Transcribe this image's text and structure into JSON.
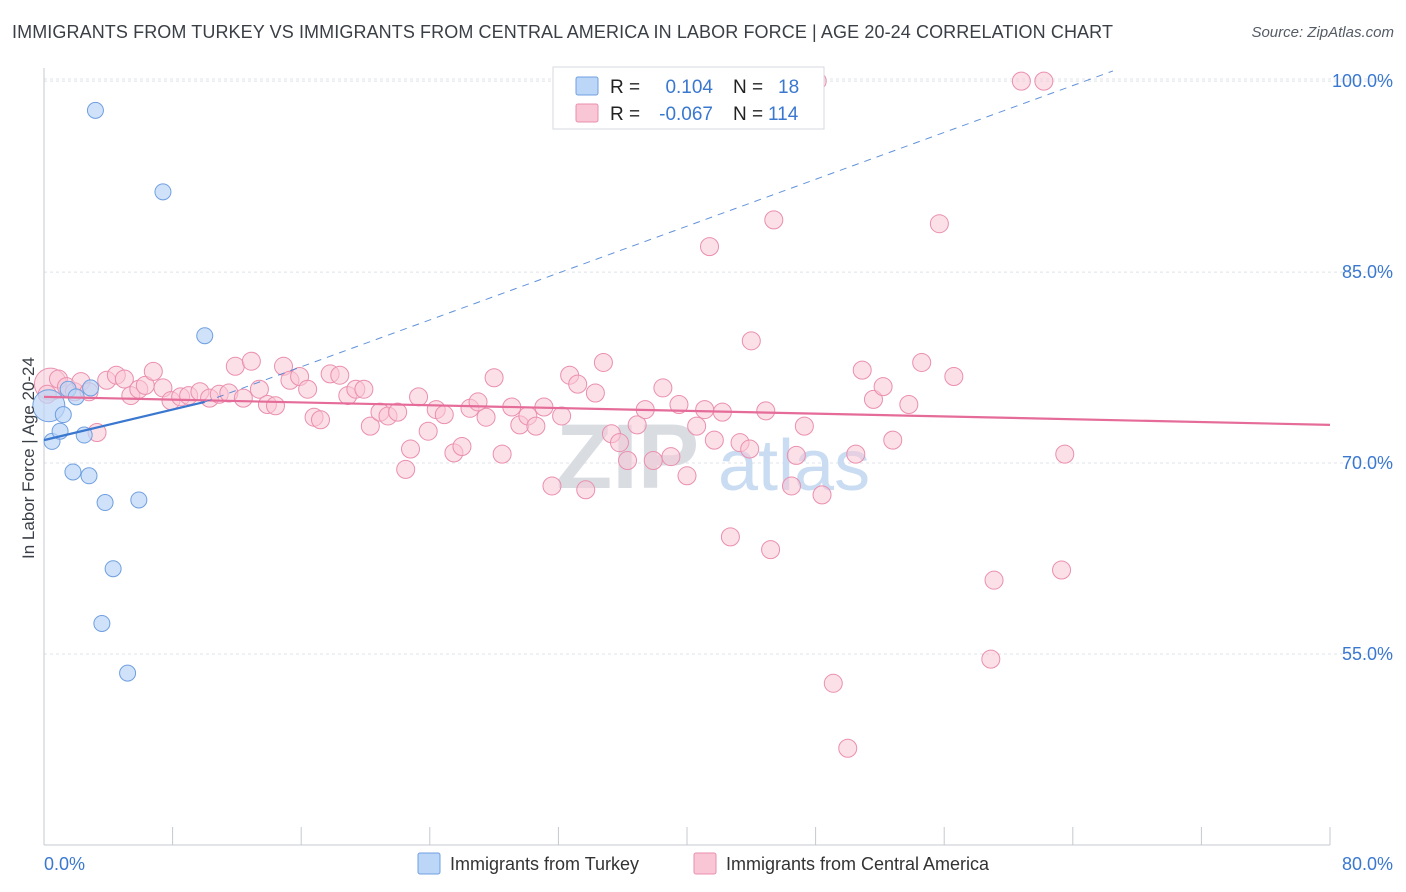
{
  "title": "IMMIGRANTS FROM TURKEY VS IMMIGRANTS FROM CENTRAL AMERICA IN LABOR FORCE | AGE 20-24 CORRELATION CHART",
  "source": "Source: ZipAtlas.com",
  "watermark": {
    "zip": "ZIP",
    "atlas": "atlas"
  },
  "colors": {
    "turkey_fill": "#bcd6f7",
    "turkey_stroke": "#6f9fe0",
    "turkey_line": "#3a78d0",
    "ca_fill": "#f9c6d6",
    "ca_stroke": "#ea8fae",
    "ca_line": "#e56b98",
    "axis_label": "#3a78d0",
    "grid": "#dfe3e8"
  },
  "legend_top": {
    "rows": [
      {
        "r_label": "R =",
        "r_value": "0.104",
        "n_label": "N =",
        "n_value": "18"
      },
      {
        "r_label": "R =",
        "r_value": "-0.067",
        "n_label": "N =",
        "n_value": "114"
      }
    ]
  },
  "legend_bottom": {
    "items": [
      {
        "label": "Immigrants from Turkey"
      },
      {
        "label": "Immigrants from Central America"
      }
    ]
  },
  "chart_data": {
    "type": "scatter",
    "title": "IMMIGRANTS FROM TURKEY VS IMMIGRANTS FROM CENTRAL AMERICA IN LABOR FORCE | AGE 20-24 CORRELATION CHART",
    "xlabel": "",
    "ylabel": "In Labor Force | Age 20-24",
    "xlim": [
      0,
      80
    ],
    "ylim": [
      40,
      101.5
    ],
    "x_tick_labels": [
      "0.0%",
      "80.0%"
    ],
    "y_ticks": [
      55,
      70,
      85,
      100
    ],
    "y_tick_labels": [
      "55.0%",
      "70.0%",
      "85.0%",
      "100.0%"
    ],
    "grid": true,
    "legend_position": "top-center",
    "series": [
      {
        "name": "Immigrants from Turkey",
        "r": 0.104,
        "n": 18,
        "trend": {
          "x": [
            0,
            10
          ],
          "y": [
            71.8,
            74.8
          ]
        },
        "trend_extension": {
          "x": [
            10,
            66.5
          ],
          "y": [
            74.8,
            100.8
          ]
        },
        "points": [
          {
            "x": 0.3,
            "y": 74.5,
            "big": true
          },
          {
            "x": 0.5,
            "y": 71.7
          },
          {
            "x": 1.0,
            "y": 72.5
          },
          {
            "x": 1.2,
            "y": 73.8
          },
          {
            "x": 1.5,
            "y": 75.8
          },
          {
            "x": 1.8,
            "y": 69.3
          },
          {
            "x": 2.0,
            "y": 75.2
          },
          {
            "x": 2.5,
            "y": 72.2
          },
          {
            "x": 2.8,
            "y": 69.0
          },
          {
            "x": 3.2,
            "y": 97.7
          },
          {
            "x": 3.8,
            "y": 66.9
          },
          {
            "x": 4.3,
            "y": 61.7
          },
          {
            "x": 3.6,
            "y": 57.4
          },
          {
            "x": 5.2,
            "y": 53.5
          },
          {
            "x": 5.9,
            "y": 67.1
          },
          {
            "x": 7.4,
            "y": 91.3
          },
          {
            "x": 10.0,
            "y": 80.0
          },
          {
            "x": 2.9,
            "y": 75.9
          }
        ]
      },
      {
        "name": "Immigrants from Central America",
        "r": -0.067,
        "n": 114,
        "trend": {
          "x": [
            0,
            80
          ],
          "y": [
            75.2,
            73.0
          ]
        },
        "points": [
          {
            "x": 0.4,
            "y": 76.2,
            "big": true
          },
          {
            "x": 0.9,
            "y": 76.6
          },
          {
            "x": 1.4,
            "y": 76.0
          },
          {
            "x": 1.9,
            "y": 75.6
          },
          {
            "x": 2.3,
            "y": 76.4
          },
          {
            "x": 2.8,
            "y": 75.6
          },
          {
            "x": 3.3,
            "y": 72.4
          },
          {
            "x": 3.9,
            "y": 76.5
          },
          {
            "x": 4.5,
            "y": 76.9
          },
          {
            "x": 5.0,
            "y": 76.6
          },
          {
            "x": 5.4,
            "y": 75.3
          },
          {
            "x": 5.9,
            "y": 75.8
          },
          {
            "x": 6.3,
            "y": 76.1
          },
          {
            "x": 6.8,
            "y": 77.2
          },
          {
            "x": 7.4,
            "y": 75.9
          },
          {
            "x": 7.9,
            "y": 74.9
          },
          {
            "x": 8.5,
            "y": 75.2
          },
          {
            "x": 9.0,
            "y": 75.3
          },
          {
            "x": 9.7,
            "y": 75.6
          },
          {
            "x": 10.3,
            "y": 75.1
          },
          {
            "x": 10.9,
            "y": 75.4
          },
          {
            "x": 11.5,
            "y": 75.5
          },
          {
            "x": 11.9,
            "y": 77.6
          },
          {
            "x": 12.4,
            "y": 75.1
          },
          {
            "x": 12.9,
            "y": 78.0
          },
          {
            "x": 13.4,
            "y": 75.8
          },
          {
            "x": 13.9,
            "y": 74.6
          },
          {
            "x": 14.4,
            "y": 74.5
          },
          {
            "x": 14.9,
            "y": 77.6
          },
          {
            "x": 15.3,
            "y": 76.5
          },
          {
            "x": 15.9,
            "y": 76.8
          },
          {
            "x": 16.4,
            "y": 75.8
          },
          {
            "x": 16.8,
            "y": 73.6
          },
          {
            "x": 17.2,
            "y": 73.4
          },
          {
            "x": 17.8,
            "y": 77.0
          },
          {
            "x": 18.4,
            "y": 76.9
          },
          {
            "x": 18.9,
            "y": 75.3
          },
          {
            "x": 19.4,
            "y": 75.8
          },
          {
            "x": 19.9,
            "y": 75.8
          },
          {
            "x": 20.3,
            "y": 72.9
          },
          {
            "x": 20.9,
            "y": 74.0
          },
          {
            "x": 21.4,
            "y": 73.7
          },
          {
            "x": 22.0,
            "y": 74.0
          },
          {
            "x": 22.5,
            "y": 69.5
          },
          {
            "x": 22.8,
            "y": 71.1
          },
          {
            "x": 23.3,
            "y": 75.2
          },
          {
            "x": 23.9,
            "y": 72.5
          },
          {
            "x": 24.4,
            "y": 74.2
          },
          {
            "x": 24.9,
            "y": 73.8
          },
          {
            "x": 25.5,
            "y": 70.8
          },
          {
            "x": 26.0,
            "y": 71.3
          },
          {
            "x": 26.5,
            "y": 74.3
          },
          {
            "x": 27.0,
            "y": 74.8
          },
          {
            "x": 27.5,
            "y": 73.6
          },
          {
            "x": 28.0,
            "y": 76.7
          },
          {
            "x": 28.5,
            "y": 70.7
          },
          {
            "x": 29.1,
            "y": 74.4
          },
          {
            "x": 29.6,
            "y": 73.0
          },
          {
            "x": 30.1,
            "y": 73.7
          },
          {
            "x": 30.6,
            "y": 72.9
          },
          {
            "x": 31.1,
            "y": 74.4
          },
          {
            "x": 31.6,
            "y": 68.2
          },
          {
            "x": 32.2,
            "y": 73.7
          },
          {
            "x": 32.7,
            "y": 76.9
          },
          {
            "x": 33.2,
            "y": 76.2
          },
          {
            "x": 33.7,
            "y": 67.9
          },
          {
            "x": 34.3,
            "y": 75.5
          },
          {
            "x": 34.8,
            "y": 77.9
          },
          {
            "x": 35.3,
            "y": 72.3
          },
          {
            "x": 35.8,
            "y": 71.6
          },
          {
            "x": 36.3,
            "y": 70.2
          },
          {
            "x": 36.9,
            "y": 73.0
          },
          {
            "x": 37.4,
            "y": 74.2
          },
          {
            "x": 37.9,
            "y": 70.2
          },
          {
            "x": 38.5,
            "y": 75.9
          },
          {
            "x": 39.0,
            "y": 70.5
          },
          {
            "x": 39.5,
            "y": 74.6
          },
          {
            "x": 40.0,
            "y": 69.0
          },
          {
            "x": 40.6,
            "y": 72.9
          },
          {
            "x": 41.1,
            "y": 74.2
          },
          {
            "x": 41.4,
            "y": 87.0
          },
          {
            "x": 41.7,
            "y": 71.8
          },
          {
            "x": 42.2,
            "y": 74.0
          },
          {
            "x": 42.7,
            "y": 64.2
          },
          {
            "x": 43.3,
            "y": 71.6
          },
          {
            "x": 43.9,
            "y": 71.1
          },
          {
            "x": 44.0,
            "y": 79.6
          },
          {
            "x": 44.9,
            "y": 74.1
          },
          {
            "x": 45.4,
            "y": 89.1
          },
          {
            "x": 45.2,
            "y": 63.2
          },
          {
            "x": 46.5,
            "y": 68.2
          },
          {
            "x": 46.8,
            "y": 70.6
          },
          {
            "x": 47.3,
            "y": 72.9
          },
          {
            "x": 48.4,
            "y": 67.5
          },
          {
            "x": 49.1,
            "y": 52.7
          },
          {
            "x": 50.0,
            "y": 47.6
          },
          {
            "x": 50.5,
            "y": 70.7
          },
          {
            "x": 50.9,
            "y": 77.3
          },
          {
            "x": 51.6,
            "y": 75.0
          },
          {
            "x": 52.2,
            "y": 76.0
          },
          {
            "x": 52.8,
            "y": 71.8
          },
          {
            "x": 53.8,
            "y": 74.6
          },
          {
            "x": 54.6,
            "y": 77.9
          },
          {
            "x": 55.7,
            "y": 88.8
          },
          {
            "x": 56.6,
            "y": 76.8
          },
          {
            "x": 58.9,
            "y": 54.6
          },
          {
            "x": 59.1,
            "y": 60.8
          },
          {
            "x": 60.8,
            "y": 100.0
          },
          {
            "x": 62.2,
            "y": 100.0
          },
          {
            "x": 63.3,
            "y": 61.6
          },
          {
            "x": 63.5,
            "y": 70.7
          },
          {
            "x": 47.9,
            "y": 100.0
          },
          {
            "x": 48.1,
            "y": 100.0
          },
          {
            "x": 0.2,
            "y": 75.4
          }
        ]
      }
    ]
  }
}
